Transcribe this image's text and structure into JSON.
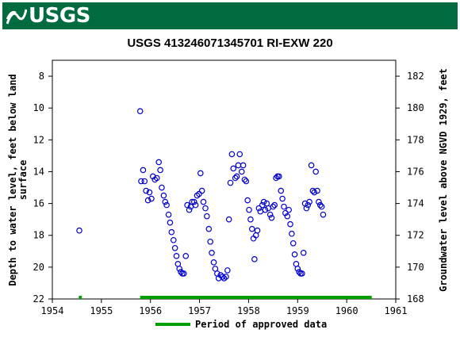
{
  "header": {
    "agency": "USGS"
  },
  "chart_data": {
    "type": "scatter",
    "title": "USGS 413246071345701 RI-EXW  220",
    "ylabel_left_lines": [
      "Depth to water level, feet below land",
      "surface"
    ],
    "ylabel_right": "Groundwater level above NGVD 1929, feet",
    "x_ticks": [
      "1954",
      "1955",
      "1956",
      "1957",
      "1958",
      "1959",
      "1960",
      "1961"
    ],
    "x_range": [
      1954,
      1961
    ],
    "y_left_range": [
      22,
      7
    ],
    "y_left_ticks": [
      "8",
      "10",
      "12",
      "14",
      "16",
      "18",
      "20",
      "22"
    ],
    "y_right_ticks": [
      "168",
      "170",
      "172",
      "174",
      "176",
      "178",
      "180",
      "182"
    ],
    "y_right_range": [
      168,
      183
    ],
    "legend": {
      "label": "Period of approved data",
      "color": "#00a000",
      "placement": "bottom"
    },
    "approved_periods": [
      [
        1954.54,
        1954.6
      ],
      [
        1955.79,
        1960.51
      ]
    ],
    "series_color": "#0000cc",
    "points": [
      [
        1954.55,
        17.7
      ],
      [
        1955.79,
        10.2
      ],
      [
        1955.81,
        14.6
      ],
      [
        1955.85,
        13.9
      ],
      [
        1955.88,
        14.6
      ],
      [
        1955.91,
        15.2
      ],
      [
        1955.95,
        15.8
      ],
      [
        1955.98,
        15.3
      ],
      [
        1956.02,
        15.7
      ],
      [
        1956.05,
        14.3
      ],
      [
        1956.09,
        14.5
      ],
      [
        1956.13,
        14.4
      ],
      [
        1956.17,
        13.4
      ],
      [
        1956.2,
        13.9
      ],
      [
        1956.23,
        15.0
      ],
      [
        1956.27,
        15.5
      ],
      [
        1956.3,
        15.9
      ],
      [
        1956.33,
        16.1
      ],
      [
        1956.37,
        16.7
      ],
      [
        1956.4,
        17.2
      ],
      [
        1956.43,
        17.8
      ],
      [
        1956.47,
        18.3
      ],
      [
        1956.5,
        18.8
      ],
      [
        1956.53,
        19.3
      ],
      [
        1956.56,
        19.8
      ],
      [
        1956.59,
        20.1
      ],
      [
        1956.62,
        20.3
      ],
      [
        1956.65,
        20.4
      ],
      [
        1956.68,
        20.4
      ],
      [
        1956.72,
        19.3
      ],
      [
        1956.75,
        16.1
      ],
      [
        1956.79,
        16.4
      ],
      [
        1956.82,
        16.2
      ],
      [
        1956.85,
        15.9
      ],
      [
        1956.89,
        15.9
      ],
      [
        1956.92,
        16.1
      ],
      [
        1956.95,
        15.5
      ],
      [
        1956.99,
        15.4
      ],
      [
        1957.02,
        14.1
      ],
      [
        1957.05,
        15.2
      ],
      [
        1957.08,
        15.9
      ],
      [
        1957.12,
        16.3
      ],
      [
        1957.15,
        16.8
      ],
      [
        1957.19,
        17.6
      ],
      [
        1957.22,
        18.4
      ],
      [
        1957.25,
        19.1
      ],
      [
        1957.29,
        19.7
      ],
      [
        1957.32,
        20.1
      ],
      [
        1957.36,
        20.4
      ],
      [
        1957.39,
        20.7
      ],
      [
        1957.43,
        20.5
      ],
      [
        1957.47,
        20.6
      ],
      [
        1957.5,
        20.7
      ],
      [
        1957.54,
        20.6
      ],
      [
        1957.57,
        20.2
      ],
      [
        1957.6,
        17.0
      ],
      [
        1957.63,
        14.7
      ],
      [
        1957.66,
        12.9
      ],
      [
        1957.69,
        13.8
      ],
      [
        1957.73,
        14.4
      ],
      [
        1957.76,
        14.3
      ],
      [
        1957.79,
        13.6
      ],
      [
        1957.82,
        12.9
      ],
      [
        1957.86,
        14.0
      ],
      [
        1957.89,
        13.6
      ],
      [
        1957.92,
        14.5
      ],
      [
        1957.95,
        14.6
      ],
      [
        1957.98,
        15.8
      ],
      [
        1958.01,
        16.4
      ],
      [
        1958.04,
        17.0
      ],
      [
        1958.07,
        17.6
      ],
      [
        1958.1,
        18.2
      ],
      [
        1958.12,
        19.5
      ],
      [
        1958.15,
        18.0
      ],
      [
        1958.18,
        17.7
      ],
      [
        1958.21,
        16.3
      ],
      [
        1958.24,
        16.5
      ],
      [
        1958.28,
        16.1
      ],
      [
        1958.31,
        15.9
      ],
      [
        1958.34,
        16.4
      ],
      [
        1958.37,
        16.0
      ],
      [
        1958.4,
        16.3
      ],
      [
        1958.44,
        16.7
      ],
      [
        1958.47,
        16.9
      ],
      [
        1958.5,
        16.2
      ],
      [
        1958.53,
        16.1
      ],
      [
        1958.56,
        14.4
      ],
      [
        1958.59,
        14.3
      ],
      [
        1958.62,
        14.3
      ],
      [
        1958.66,
        15.2
      ],
      [
        1958.69,
        15.7
      ],
      [
        1958.72,
        16.2
      ],
      [
        1958.75,
        16.6
      ],
      [
        1958.79,
        16.8
      ],
      [
        1958.82,
        16.4
      ],
      [
        1958.85,
        17.3
      ],
      [
        1958.88,
        17.9
      ],
      [
        1958.91,
        18.5
      ],
      [
        1958.94,
        19.2
      ],
      [
        1958.97,
        19.8
      ],
      [
        1959.0,
        20.1
      ],
      [
        1959.03,
        20.3
      ],
      [
        1959.06,
        20.4
      ],
      [
        1959.09,
        20.4
      ],
      [
        1959.12,
        19.1
      ],
      [
        1959.15,
        16.0
      ],
      [
        1959.18,
        16.3
      ],
      [
        1959.21,
        16.1
      ],
      [
        1959.24,
        15.9
      ],
      [
        1959.28,
        13.6
      ],
      [
        1959.31,
        15.2
      ],
      [
        1959.34,
        15.3
      ],
      [
        1959.37,
        14.0
      ],
      [
        1959.4,
        15.2
      ],
      [
        1959.43,
        15.9
      ],
      [
        1959.46,
        16.1
      ],
      [
        1959.49,
        16.2
      ],
      [
        1959.52,
        16.7
      ]
    ]
  }
}
